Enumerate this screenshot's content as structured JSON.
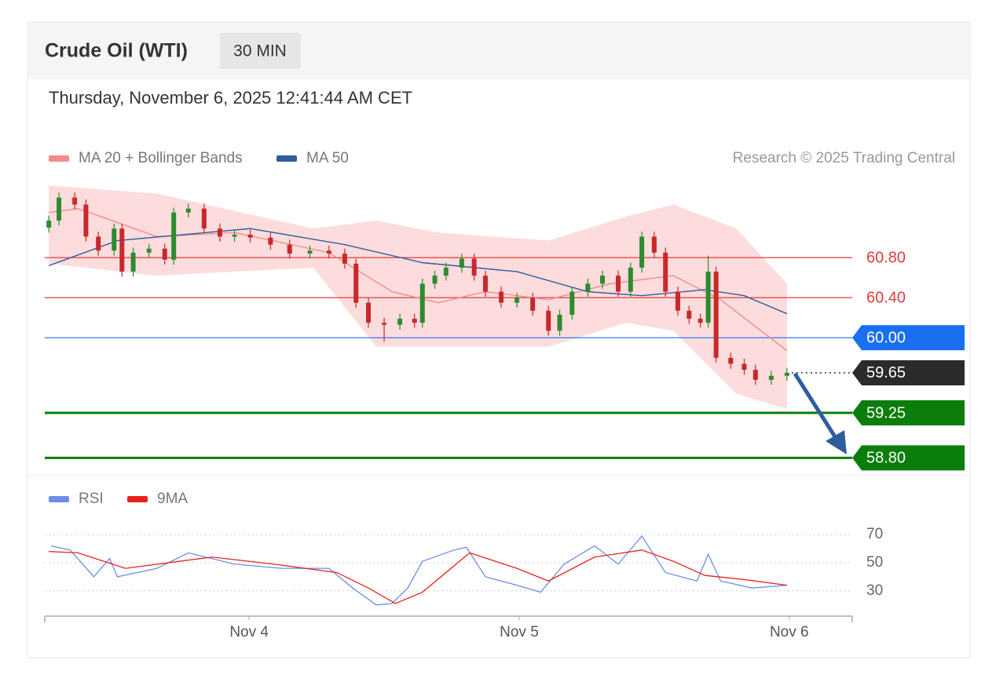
{
  "header": {
    "title": "Crude Oil (WTI)",
    "interval": "30 MIN",
    "datetime": "Thursday, November 6, 2025 12:41:44 AM CET"
  },
  "chart_data": [
    {
      "type": "candlestick",
      "note": "Research © 2025 Trading Central",
      "x": [
        6.2,
        7.1,
        8.5,
        9.5,
        10.6,
        12.0,
        12.7,
        13.7,
        15.1,
        16.5,
        17.3,
        18.6,
        20.0,
        21.4,
        22.7,
        24.1,
        25.9,
        27.6,
        29.4,
        31.1,
        32.5,
        33.5,
        34.6,
        36.0,
        37.4,
        38.7,
        39.4,
        40.5,
        41.5,
        42.9,
        44.0,
        45.0,
        46.4,
        47.8,
        49.2,
        50.6,
        51.6,
        52.7,
        54.1,
        55.4,
        56.8,
        57.9,
        58.9,
        60.0,
        61.0,
        62.1,
        63.1,
        64.1,
        64.8,
        65.5,
        66.8,
        68.0,
        69.0,
        70.4,
        71.8
      ],
      "open": [
        61.1,
        61.17,
        61.4,
        61.33,
        61.01,
        60.87,
        61.09,
        60.66,
        60.85,
        60.89,
        60.78,
        61.25,
        61.29,
        61.09,
        61.01,
        61.03,
        61.0,
        60.93,
        60.84,
        60.87,
        60.84,
        60.74,
        60.35,
        60.15,
        60.13,
        60.19,
        60.15,
        60.54,
        60.62,
        60.7,
        60.79,
        60.62,
        60.46,
        60.35,
        60.4,
        60.27,
        60.07,
        60.23,
        60.46,
        60.54,
        60.62,
        60.46,
        60.7,
        61.01,
        60.85,
        60.46,
        60.27,
        60.19,
        60.15,
        60.66,
        59.8,
        59.74,
        59.68,
        59.58,
        59.62
      ],
      "high": [
        61.22,
        61.45,
        61.45,
        61.38,
        61.06,
        61.14,
        61.14,
        60.9,
        60.94,
        60.94,
        61.3,
        61.34,
        61.34,
        61.14,
        61.08,
        61.08,
        61.05,
        60.98,
        60.92,
        60.92,
        60.89,
        60.79,
        60.4,
        60.2,
        60.24,
        60.24,
        60.59,
        60.67,
        60.75,
        60.84,
        60.84,
        60.67,
        60.51,
        60.45,
        60.45,
        60.32,
        60.28,
        60.51,
        60.59,
        60.67,
        60.67,
        60.75,
        61.06,
        61.06,
        60.9,
        60.51,
        60.32,
        60.24,
        60.82,
        60.71,
        59.85,
        59.79,
        59.73,
        59.67,
        59.7
      ],
      "low": [
        61.05,
        61.12,
        61.28,
        60.96,
        60.82,
        60.82,
        60.61,
        60.61,
        60.8,
        60.73,
        60.73,
        61.2,
        61.04,
        60.96,
        60.96,
        60.95,
        60.88,
        60.79,
        60.79,
        60.79,
        60.69,
        60.3,
        60.1,
        59.96,
        60.08,
        60.1,
        60.1,
        60.49,
        60.57,
        60.65,
        60.57,
        60.41,
        60.3,
        60.3,
        60.22,
        60.02,
        60.02,
        60.18,
        60.41,
        60.49,
        60.41,
        60.41,
        60.65,
        60.8,
        60.41,
        60.22,
        60.14,
        60.1,
        60.1,
        59.75,
        59.69,
        59.63,
        59.53,
        59.53,
        59.57
      ],
      "close": [
        61.17,
        61.4,
        61.33,
        61.01,
        60.87,
        61.09,
        60.66,
        60.85,
        60.89,
        60.78,
        61.25,
        61.29,
        61.09,
        61.01,
        61.03,
        61.0,
        60.93,
        60.84,
        60.87,
        60.84,
        60.74,
        60.35,
        60.15,
        60.13,
        60.19,
        60.15,
        60.54,
        60.62,
        60.7,
        60.79,
        60.62,
        60.46,
        60.35,
        60.4,
        60.27,
        60.07,
        60.23,
        60.46,
        60.54,
        60.62,
        60.46,
        60.7,
        61.01,
        60.85,
        60.46,
        60.27,
        60.19,
        60.15,
        60.66,
        59.8,
        59.74,
        59.68,
        59.58,
        59.62,
        59.65
      ],
      "up_color": "#2e8b2e",
      "down_color": "#c8282c",
      "xlim": [
        5.84,
        77.6
      ],
      "ylim": [
        58.67,
        61.57
      ],
      "series": [
        {
          "name": "MA 20 + Bollinger Bands",
          "color": "#f28b8b",
          "x": [
            6.2,
            8.8,
            15.8,
            22.7,
            31.1,
            36.7,
            40.8,
            45.0,
            50.6,
            56.1,
            61.7,
            65.9,
            71.8
          ],
          "values": [
            61.25,
            61.29,
            61.01,
            61.05,
            60.85,
            60.46,
            60.35,
            60.46,
            60.38,
            60.54,
            60.62,
            60.38,
            59.87
          ],
          "band": {
            "color": "#fbd3d3",
            "x": [
              6.2,
              15.8,
              29.7,
              35.3,
              40.8,
              50.6,
              57.5,
              61.7,
              67.3,
              71.8
            ],
            "upper": [
              61.52,
              61.44,
              61.09,
              61.17,
              61.05,
              60.97,
              61.21,
              61.33,
              61.09,
              60.54
            ],
            "lower": [
              60.74,
              60.62,
              60.7,
              59.91,
              59.91,
              59.91,
              60.15,
              60.07,
              59.44,
              59.29
            ]
          }
        },
        {
          "name": "MA 50",
          "color": "#2f5d9e",
          "x": [
            6.2,
            12.3,
            24.1,
            32.5,
            39.4,
            47.8,
            54.1,
            58.9,
            64.5,
            68.0,
            71.8
          ],
          "values": [
            60.72,
            60.97,
            61.09,
            60.93,
            60.75,
            60.66,
            60.46,
            60.42,
            60.48,
            60.42,
            60.24
          ]
        }
      ],
      "levels": [
        {
          "value": 60.8,
          "label": "60.80",
          "color": "#e03c3c",
          "style": "thin",
          "tag": "text"
        },
        {
          "value": 60.4,
          "label": "60.40",
          "color": "#e03c3c",
          "style": "thin",
          "tag": "text"
        },
        {
          "value": 60.0,
          "label": "60.00",
          "color": "#1a6ff0",
          "style": "thin",
          "tag": "fill"
        },
        {
          "value": 59.65,
          "color": "#2b2b2b",
          "style": "dotted",
          "tag": "fill"
        },
        {
          "value": 59.25,
          "color": "#0a7d0a",
          "style": "thick",
          "tag": "fill"
        },
        {
          "value": 58.8,
          "label": "58.80",
          "color": "#0a7d0a",
          "style": "thick",
          "tag": "fill"
        }
      ]
    },
    {
      "type": "line",
      "series": [
        {
          "name": "RSI",
          "color": "#6b8fe6",
          "x": [
            6.4,
            8.1,
            10.2,
            11.6,
            12.3,
            15.8,
            18.6,
            22.7,
            26.9,
            31.1,
            33.2,
            35.3,
            36.7,
            38.1,
            39.4,
            42.2,
            43.3,
            45.0,
            47.8,
            49.9,
            52.0,
            54.7,
            56.8,
            58.9,
            61.0,
            63.8,
            64.8,
            65.9,
            68.7,
            71.8
          ],
          "values": [
            62,
            59,
            40,
            53,
            40,
            46,
            57,
            49,
            46,
            46,
            32,
            20,
            21,
            32,
            51,
            59,
            61,
            40,
            34,
            29,
            49,
            62,
            49,
            69,
            43,
            37,
            56,
            37,
            32,
            34
          ]
        },
        {
          "name": "9MA",
          "color": "#e8231f",
          "x": [
            6.2,
            8.8,
            13.0,
            20.7,
            26.2,
            31.8,
            34.6,
            37.0,
            39.4,
            43.6,
            47.8,
            50.6,
            54.7,
            58.9,
            61.7,
            64.5,
            68.0,
            71.8
          ],
          "values": [
            58,
            57,
            46,
            54,
            49,
            43,
            32,
            21,
            29,
            57,
            46,
            37,
            54,
            59,
            51,
            41,
            38,
            34
          ]
        }
      ],
      "xlim": [
        5.84,
        77.6
      ],
      "ylim": [
        12,
        79
      ],
      "yticks": [
        30,
        50,
        70
      ],
      "grid": "dotted",
      "xticks": [
        {
          "value": 24,
          "label": "Nov 4"
        },
        {
          "value": 48,
          "label": "Nov 5"
        },
        {
          "value": 72,
          "label": "Nov 6"
        }
      ]
    }
  ]
}
